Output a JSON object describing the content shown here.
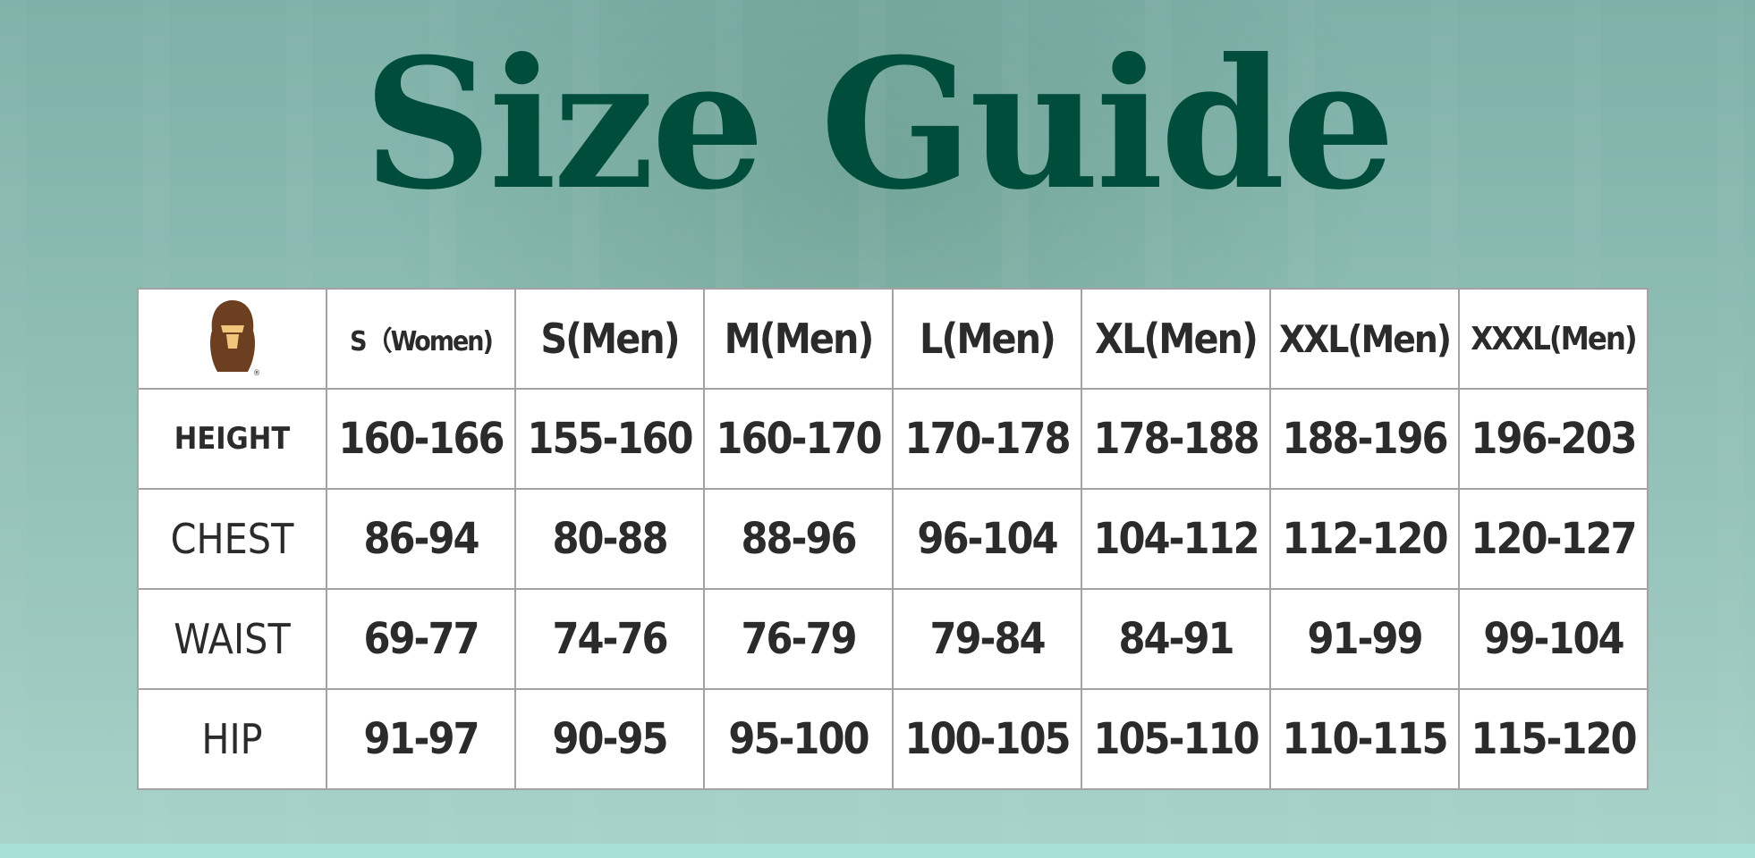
{
  "title": "Size Guide",
  "logo": {
    "name": "bape-ape-head-logo",
    "text": "®",
    "color": "#6b3f1f"
  },
  "colors": {
    "title": "#004d3c",
    "background": "#8dbdb3",
    "grid": "#a3a3a3"
  },
  "table": {
    "headers": [
      "S（Women)",
      "S(Men)",
      "M(Men)",
      "L(Men)",
      "XL(Men)",
      "XXL(Men)",
      "XXXL(Men)"
    ],
    "rows": [
      {
        "label": "HEIGHT",
        "values": [
          "160-166",
          "155-160",
          "160-170",
          "170-178",
          "178-188",
          "188-196",
          "196-203"
        ]
      },
      {
        "label": "CHEST",
        "values": [
          "86-94",
          "80-88",
          "88-96",
          "96-104",
          "104-112",
          "112-120",
          "120-127"
        ]
      },
      {
        "label": "WAIST",
        "values": [
          "69-77",
          "74-76",
          "76-79",
          "79-84",
          "84-91",
          "91-99",
          "99-104"
        ]
      },
      {
        "label": "HIP",
        "values": [
          "91-97",
          "90-95",
          "95-100",
          "100-105",
          "105-110",
          "110-115",
          "115-120"
        ]
      }
    ]
  }
}
